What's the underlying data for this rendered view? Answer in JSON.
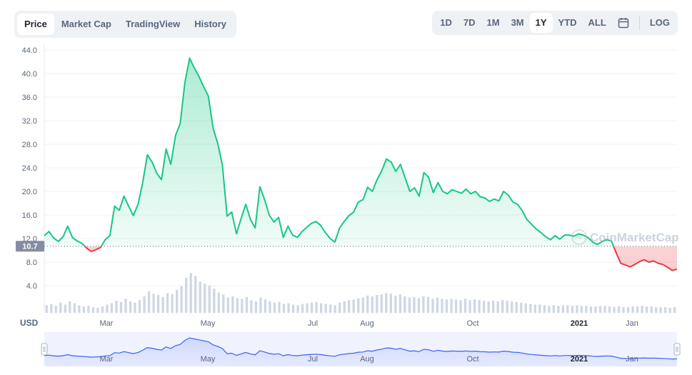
{
  "tabs": [
    "Price",
    "Market Cap",
    "TradingView",
    "History"
  ],
  "active_tab": "Price",
  "ranges": [
    "1D",
    "7D",
    "1M",
    "3M",
    "1Y",
    "YTD",
    "ALL"
  ],
  "active_range": "1Y",
  "calendar_icon": "calendar-icon",
  "log_label": "LOG",
  "currency_label": "USD",
  "watermark": "CoinMarketCap",
  "current_price_label": "10.7",
  "colors": {
    "up": "#16c784",
    "down": "#ea3943",
    "navigator_line": "#3861fb",
    "navigator_fill": "#e8edfd",
    "volume": "#cfd6e4",
    "grid": "#eff2f5"
  },
  "chart_data": {
    "type": "line",
    "ylim": [
      0,
      44
    ],
    "ytick_values": [
      4,
      8,
      12,
      16,
      20,
      24,
      28,
      32,
      36,
      40,
      44
    ],
    "ytick_labels": [
      "4.0",
      "8.0",
      "12.0",
      "16.0",
      "20.0",
      "24.0",
      "28.0",
      "32.0",
      "36.0",
      "40.0",
      "44.0"
    ],
    "xtick_labels": [
      {
        "label": "Mar",
        "bold": false
      },
      {
        "label": "May",
        "bold": false
      },
      {
        "label": "Jul",
        "bold": false
      },
      {
        "label": "Aug",
        "bold": false
      },
      {
        "label": "Oct",
        "bold": false
      },
      {
        "label": "2021",
        "bold": true
      },
      {
        "label": "Jan",
        "bold": false
      }
    ],
    "baseline_price": 10.7,
    "price_series": [
      12.5,
      13.2,
      12.1,
      11.5,
      12.3,
      14.1,
      12.2,
      11.6,
      11.2,
      10.4,
      9.8,
      10.1,
      10.5,
      11.8,
      12.5,
      17.5,
      16.8,
      19.2,
      17.5,
      15.9,
      17.8,
      21.5,
      26.2,
      25.0,
      23.1,
      22.0,
      27.2,
      24.6,
      29.5,
      31.5,
      38.5,
      42.6,
      41.0,
      39.5,
      37.8,
      36.2,
      30.8,
      28.2,
      24.5,
      15.8,
      16.5,
      12.8,
      15.4,
      17.8,
      15.2,
      13.8,
      20.8,
      18.6,
      16.0,
      14.8,
      15.6,
      12.2,
      14.1,
      12.6,
      12.2,
      13.2,
      13.9,
      14.6,
      14.9,
      14.2,
      13.0,
      12.0,
      11.4,
      13.8,
      14.9,
      15.9,
      16.5,
      18.2,
      18.6,
      20.7,
      20.0,
      22.0,
      23.5,
      25.5,
      25.0,
      23.4,
      24.6,
      22.3,
      20.0,
      20.6,
      19.2,
      23.2,
      22.4,
      19.8,
      21.5,
      20.0,
      19.6,
      20.3,
      20.0,
      19.7,
      20.4,
      19.6,
      20.0,
      19.1,
      18.9,
      18.3,
      18.7,
      18.4,
      20.0,
      19.4,
      18.2,
      17.8,
      16.7,
      15.2,
      14.4,
      13.6,
      13.0,
      12.3,
      11.8,
      12.5,
      11.9,
      12.6,
      12.6,
      12.4,
      12.8,
      12.6,
      12.2,
      11.4,
      11.0,
      11.5,
      11.8,
      11.6,
      9.6,
      7.8,
      7.5,
      7.2,
      7.6,
      8.1,
      8.4,
      8.0,
      8.2,
      7.8,
      7.6,
      7.1,
      6.6,
      6.8
    ],
    "volume_series": [
      1.2,
      1.4,
      1.1,
      1.6,
      1.3,
      1.8,
      1.5,
      1.2,
      1.0,
      1.1,
      0.9,
      0.8,
      1.0,
      1.3,
      1.5,
      1.9,
      1.7,
      2.2,
      1.8,
      1.6,
      2.0,
      2.6,
      3.4,
      3.0,
      2.8,
      2.5,
      3.1,
      2.9,
      3.6,
      4.2,
      5.5,
      6.2,
      5.8,
      4.9,
      4.6,
      4.3,
      3.8,
      3.2,
      2.9,
      2.4,
      2.6,
      2.3,
      2.2,
      2.5,
      2.0,
      1.8,
      2.4,
      2.1,
      1.8,
      1.6,
      1.7,
      1.4,
      1.5,
      1.3,
      1.2,
      1.4,
      1.5,
      1.6,
      1.7,
      1.5,
      1.4,
      1.3,
      1.2,
      1.6,
      1.8,
      2.0,
      2.1,
      2.3,
      2.4,
      2.7,
      2.6,
      2.8,
      2.9,
      3.1,
      3.0,
      2.7,
      2.9,
      2.6,
      2.4,
      2.5,
      2.3,
      2.6,
      2.5,
      2.2,
      2.4,
      2.2,
      2.1,
      2.2,
      2.1,
      2.0,
      2.2,
      2.0,
      2.1,
      2.0,
      1.9,
      1.8,
      1.9,
      1.8,
      2.0,
      1.9,
      1.8,
      1.7,
      1.6,
      1.5,
      1.4,
      1.3,
      1.3,
      1.2,
      1.1,
      1.2,
      1.1,
      1.2,
      1.2,
      1.1,
      1.2,
      1.1,
      1.1,
      1.0,
      1.0,
      1.1,
      1.1,
      1.0,
      0.9,
      1.0,
      0.9,
      0.9,
      1.0,
      1.0,
      1.1,
      1.0,
      1.0,
      0.9,
      0.9,
      0.9,
      0.8,
      0.9
    ]
  }
}
